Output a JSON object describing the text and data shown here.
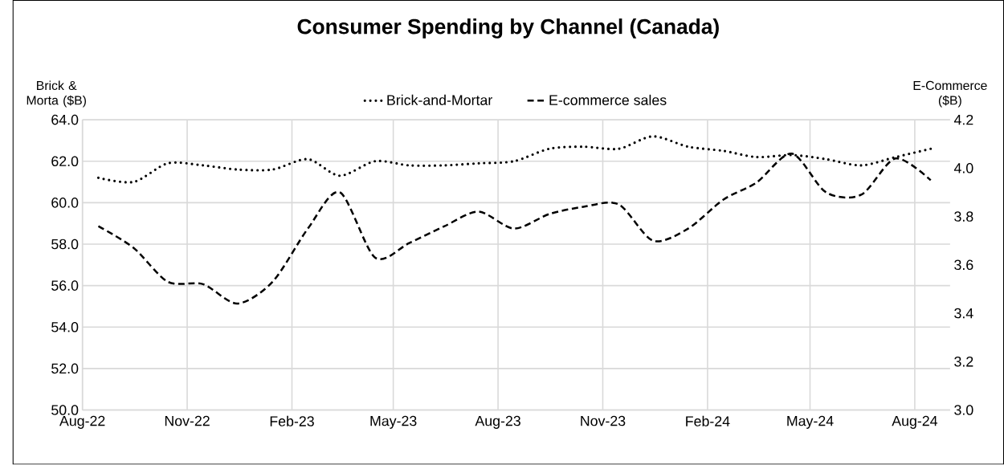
{
  "chart_data": {
    "type": "line",
    "title": "Consumer Spending by Channel (Canada)",
    "ylabel": "Brick & Morta ($B)",
    "y2label": "E-Commerce ($B)",
    "x": [
      "2022-08-15",
      "2022-09-15",
      "2022-10-15",
      "2022-11-15",
      "2022-12-15",
      "2023-01-15",
      "2023-02-15",
      "2023-03-15",
      "2023-04-15",
      "2023-05-15",
      "2023-06-15",
      "2023-07-15",
      "2023-08-15",
      "2023-09-15",
      "2023-10-15",
      "2023-11-15",
      "2023-12-15",
      "2024-01-15",
      "2024-02-15",
      "2024-03-15",
      "2024-04-15",
      "2024-05-15",
      "2024-06-15",
      "2024-07-15",
      "2024-08-15"
    ],
    "series": [
      {
        "name": "Brick-and-Mortar",
        "color": "#000000",
        "line_style": "dotted",
        "values": [
          61.2,
          61.0,
          61.9,
          61.8,
          61.6,
          61.6,
          62.1,
          61.3,
          62.0,
          61.8,
          61.8,
          61.9,
          62.0,
          62.6,
          62.7,
          62.6,
          63.2,
          62.7,
          62.5,
          62.2,
          62.3,
          62.1,
          61.8,
          62.2,
          62.6
        ]
      },
      {
        "name": "E-commerce sales",
        "color": "#000000",
        "line_style": "dashed",
        "axis": "y2",
        "values": [
          3.76,
          3.67,
          3.53,
          3.52,
          3.44,
          3.53,
          3.75,
          3.9,
          3.63,
          3.69,
          3.76,
          3.82,
          3.75,
          3.81,
          3.84,
          3.85,
          3.7,
          3.75,
          3.87,
          3.94,
          4.06,
          3.9,
          3.89,
          4.04,
          3.95
        ]
      }
    ],
    "xlim": [
      "2022-08-01",
      "2024-09-01"
    ],
    "xticks": [
      {
        "value": "2022-08-01",
        "label": "Aug-22"
      },
      {
        "value": "2022-11-01",
        "label": "Nov-22"
      },
      {
        "value": "2023-02-01",
        "label": "Feb-23"
      },
      {
        "value": "2023-05-01",
        "label": "May-23"
      },
      {
        "value": "2023-08-01",
        "label": "Aug-23"
      },
      {
        "value": "2023-11-01",
        "label": "Nov-23"
      },
      {
        "value": "2024-02-01",
        "label": "Feb-24"
      },
      {
        "value": "2024-05-01",
        "label": "May-24"
      },
      {
        "value": "2024-08-01",
        "label": "Aug-24"
      }
    ],
    "ylim": [
      50,
      64
    ],
    "yticks": [
      {
        "value": 50,
        "label": "50.0"
      },
      {
        "value": 52,
        "label": "52.0"
      },
      {
        "value": 54,
        "label": "54.0"
      },
      {
        "value": 56,
        "label": "56.0"
      },
      {
        "value": 58,
        "label": "58.0"
      },
      {
        "value": 60,
        "label": "60.0"
      },
      {
        "value": 62,
        "label": "62.0"
      },
      {
        "value": 64,
        "label": "64.0"
      }
    ],
    "y2lim": [
      3.0,
      4.2
    ],
    "y2ticks": [
      {
        "value": 3.0,
        "label": "3.0"
      },
      {
        "value": 3.2,
        "label": "3.2"
      },
      {
        "value": 3.4,
        "label": "3.4"
      },
      {
        "value": 3.6,
        "label": "3.6"
      },
      {
        "value": 3.8,
        "label": "3.8"
      },
      {
        "value": 4.0,
        "label": "4.0"
      },
      {
        "value": 4.2,
        "label": "4.2"
      }
    ],
    "grid": true,
    "legend": "top"
  }
}
